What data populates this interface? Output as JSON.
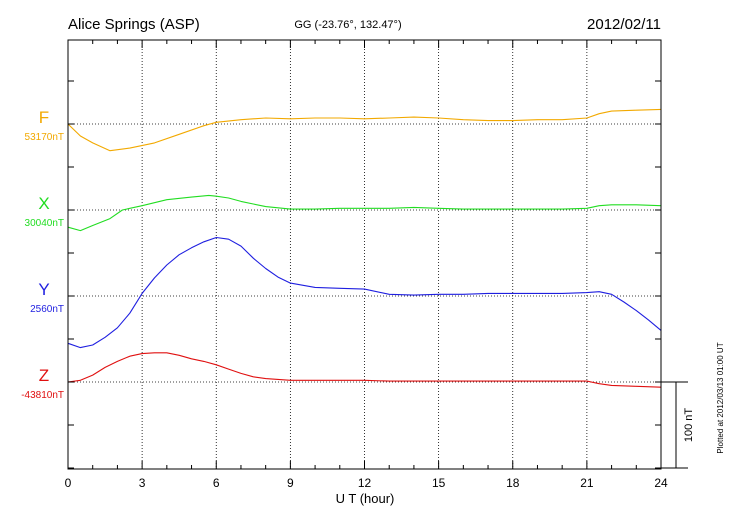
{
  "chart_data": {
    "type": "line",
    "title": "Alice Springs (ASP)",
    "subtitle": "GG (-23.76°, 132.47°)",
    "date": "2012/02/11",
    "xlabel": "U T (hour)",
    "xlim": [
      0,
      24
    ],
    "xticks": [
      "0",
      "3",
      "6",
      "9",
      "12",
      "15",
      "18",
      "21",
      "24"
    ],
    "scale_bar": {
      "label": "100 nT",
      "value": 100
    },
    "footnote": "Plotted at 2012/03/13 01:00 UT",
    "grid": true,
    "series": [
      {
        "name": "F",
        "baseline_label": "53170nT",
        "baseline": 53170,
        "color": "#f2a900",
        "x": [
          0,
          0.5,
          1,
          1.7,
          2.5,
          3.5,
          4.5,
          5.5,
          6,
          7,
          8,
          9,
          10,
          11,
          12,
          13,
          14,
          15,
          16,
          17,
          18,
          19,
          20,
          21,
          21.5,
          22,
          23,
          24
        ],
        "values": [
          53170,
          53156,
          53148,
          53139,
          53142,
          53148,
          53158,
          53168,
          53172,
          53175,
          53177,
          53176,
          53177,
          53177,
          53176,
          53177,
          53178,
          53177,
          53175,
          53174,
          53174,
          53175,
          53175,
          53177,
          53182,
          53185,
          53186,
          53187
        ]
      },
      {
        "name": "X",
        "baseline_label": "30040nT",
        "baseline": 30040,
        "color": "#22dd22",
        "x": [
          0,
          0.5,
          1,
          1.7,
          2.2,
          3,
          4,
          5,
          5.7,
          6,
          6.5,
          7,
          7.5,
          8,
          9,
          10,
          11,
          12,
          13,
          14,
          15,
          16,
          17,
          18,
          19,
          20,
          21,
          21.5,
          22,
          23,
          24
        ],
        "values": [
          30020,
          30016,
          30022,
          30030,
          30040,
          30045,
          30052,
          30055,
          30057,
          30056,
          30054,
          30050,
          30047,
          30044,
          30041,
          30041,
          30042,
          30042,
          30042,
          30043,
          30042,
          30041,
          30041,
          30041,
          30041,
          30041,
          30042,
          30045,
          30046,
          30046,
          30045
        ]
      },
      {
        "name": "Y",
        "baseline_label": "2560nT",
        "baseline": 2560,
        "color": "#1f1fe0",
        "x": [
          0,
          0.5,
          1,
          1.5,
          2,
          2.5,
          3,
          3.5,
          4,
          4.5,
          5,
          5.5,
          6,
          6.5,
          7,
          7.5,
          8,
          8.5,
          9,
          10,
          11,
          12,
          13,
          14,
          15,
          16,
          17,
          18,
          19,
          20,
          21,
          21.5,
          22,
          22.5,
          23,
          23.5,
          24
        ],
        "values": [
          2505,
          2500,
          2503,
          2512,
          2523,
          2540,
          2563,
          2581,
          2596,
          2608,
          2616,
          2623,
          2628,
          2626,
          2618,
          2604,
          2592,
          2582,
          2575,
          2570,
          2569,
          2568,
          2562,
          2561,
          2562,
          2562,
          2563,
          2563,
          2563,
          2563,
          2564,
          2565,
          2562,
          2553,
          2543,
          2532,
          2520
        ]
      },
      {
        "name": "Z",
        "baseline_label": "-43810nT",
        "baseline": -43810,
        "color": "#e01010",
        "x": [
          0,
          0.5,
          1,
          1.5,
          2,
          2.5,
          3,
          3.5,
          4,
          4.5,
          5,
          5.5,
          6,
          6.5,
          7,
          7.5,
          8,
          9,
          10,
          11,
          12,
          13,
          14,
          15,
          16,
          17,
          18,
          19,
          20,
          21,
          21.5,
          22,
          23,
          24
        ],
        "values": [
          -43810,
          -43808,
          -43802,
          -43793,
          -43786,
          -43780,
          -43777,
          -43776,
          -43776,
          -43779,
          -43783,
          -43786,
          -43790,
          -43795,
          -43800,
          -43804,
          -43806,
          -43808,
          -43808,
          -43808,
          -43808,
          -43809,
          -43809,
          -43809,
          -43809,
          -43809,
          -43809,
          -43809,
          -43809,
          -43809,
          -43812,
          -43814,
          -43815,
          -43816
        ]
      }
    ]
  }
}
